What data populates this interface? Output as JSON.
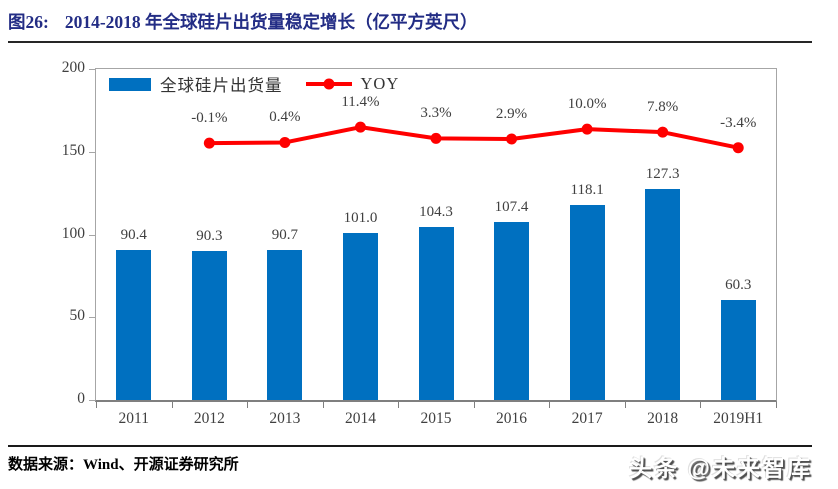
{
  "header": {
    "figure_label": "图26:",
    "title": "2014-2018 年全球硅片出货量稳定增长（亿平方英尺）"
  },
  "chart_data": {
    "type": "bar+line",
    "title": "2014-2018 年全球硅片出货量稳定增长（亿平方英尺）",
    "categories": [
      "2011",
      "2012",
      "2013",
      "2014",
      "2015",
      "2016",
      "2017",
      "2018",
      "2019H1"
    ],
    "series": [
      {
        "name": "全球硅片出货量",
        "type": "bar",
        "color": "#0070C0",
        "values": [
          90.4,
          90.3,
          90.7,
          101.0,
          104.3,
          107.4,
          118.1,
          127.3,
          60.3
        ]
      },
      {
        "name": "YOY",
        "type": "line",
        "color": "#FF0000",
        "axis": "secondary-hidden",
        "points": [
          {
            "category": "2012",
            "value": -0.1,
            "label": "-0.1%"
          },
          {
            "category": "2013",
            "value": 0.4,
            "label": "0.4%"
          },
          {
            "category": "2014",
            "value": 11.4,
            "label": "11.4%"
          },
          {
            "category": "2015",
            "value": 3.3,
            "label": "3.3%"
          },
          {
            "category": "2016",
            "value": 2.9,
            "label": "2.9%"
          },
          {
            "category": "2017",
            "value": 10.0,
            "label": "10.0%"
          },
          {
            "category": "2018",
            "value": 7.8,
            "label": "7.8%"
          },
          {
            "category": "2019H1",
            "value": -3.4,
            "label": "-3.4%"
          }
        ]
      }
    ],
    "xlabel": "",
    "ylabel": "",
    "ylim": [
      0,
      200
    ],
    "yticks": [
      0,
      50,
      100,
      150,
      200
    ],
    "grid": false,
    "legend_position": "top-inside-left",
    "colors": {
      "bar": "#0070C0",
      "line": "#FF0000",
      "axis_border": "#a6a6a6",
      "axis_bottom": "#7f7f7f",
      "labels": "#404040",
      "title": "#232d85"
    }
  },
  "footer": {
    "source": "数据来源：Wind、开源证券研究所",
    "watermark": "头条 @未来智库"
  }
}
